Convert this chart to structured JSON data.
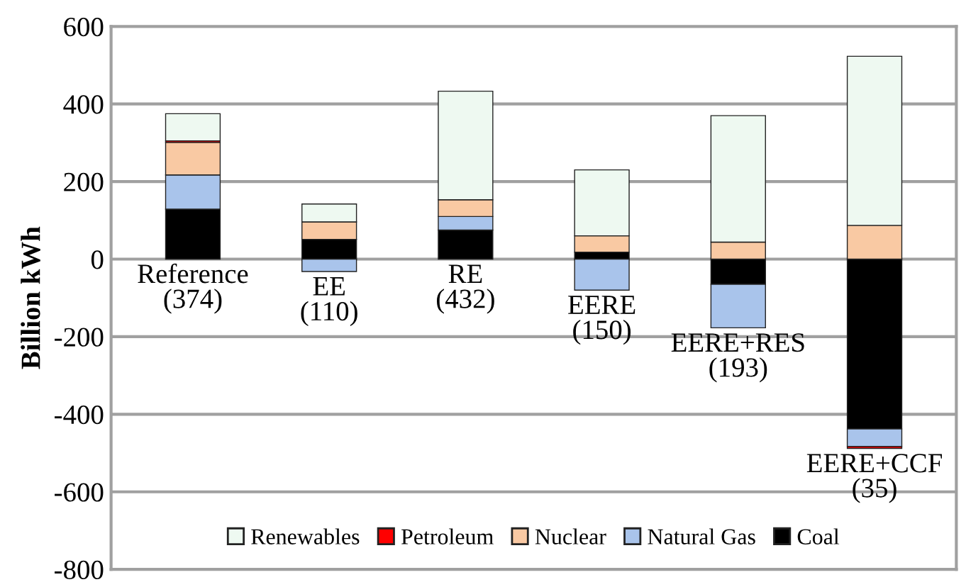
{
  "chart_data": {
    "type": "bar",
    "stacked": true,
    "ylabel": "Billion kWh",
    "categories": [
      "Reference\n(374)",
      "EE\n(110)",
      "RE\n(432)",
      "EERE\n(150)",
      "EERE+RES\n(193)",
      "EERE+CCF\n(35)"
    ],
    "series": [
      {
        "name": "Coal",
        "color": "#000000",
        "values": [
          129,
          51,
          75,
          18,
          -65,
          -438
        ]
      },
      {
        "name": "Natural Gas",
        "color": "#a9c4eb",
        "values": [
          88,
          -32,
          35,
          -80,
          -112,
          -45
        ]
      },
      {
        "name": "Nuclear",
        "color": "#f9c9a3",
        "values": [
          84,
          45,
          43,
          42,
          44,
          87
        ]
      },
      {
        "name": "Petroleum",
        "color": "#ff0000",
        "values": [
          4,
          0,
          0,
          0,
          0,
          -5
        ]
      },
      {
        "name": "Renewables",
        "color": "#eef9f1",
        "values": [
          70,
          46,
          280,
          170,
          326,
          436
        ]
      }
    ],
    "ylim": [
      -800,
      600
    ],
    "yticks": [
      -800,
      -600,
      -400,
      -200,
      0,
      200,
      400,
      600
    ],
    "grid": "y",
    "legend": "bottom"
  }
}
